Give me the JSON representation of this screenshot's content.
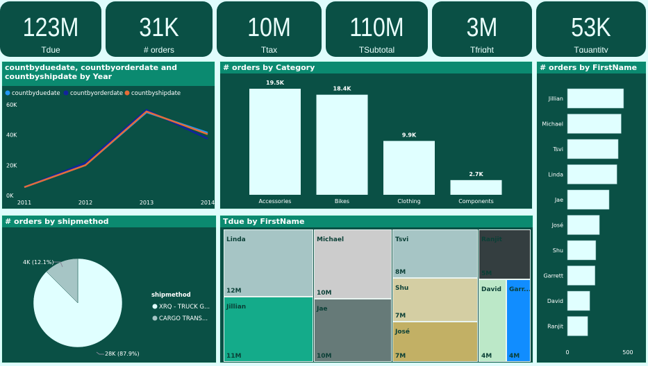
{
  "kpis": [
    {
      "value": "123M",
      "label": "Tdue"
    },
    {
      "value": "31K",
      "label": "# orders"
    },
    {
      "value": "10M",
      "label": "Ttax"
    },
    {
      "value": "110M",
      "label": "TSubtotal"
    },
    {
      "value": "3M",
      "label": "Tfright"
    },
    {
      "value": "53K",
      "label": "Tquantity"
    }
  ],
  "line_panel": {
    "title": "countbyduedate, countbyorderdate and countbyshipdate by Year"
  },
  "category_panel": {
    "title": "# orders by Category"
  },
  "firstname_panel": {
    "title": "# orders by FirstName"
  },
  "ship_panel": {
    "title": "# orders by shipmethod",
    "legend_title": "shipmethod"
  },
  "treemap_panel": {
    "title": "Tdue by FirstName"
  },
  "chart_data": [
    {
      "type": "line",
      "title": "countbyduedate, countbyorderdate and countbyshipdate by Year",
      "x": [
        "2011",
        "2012",
        "2013",
        "2014"
      ],
      "yticks": [
        "0K",
        "20K",
        "40K",
        "60K"
      ],
      "ylim": [
        0,
        60000
      ],
      "series": [
        {
          "name": "countbyduedate",
          "color": "#2196f3",
          "values": [
            5500,
            20000,
            55000,
            41500
          ]
        },
        {
          "name": "countbyorderdate",
          "color": "#12239e",
          "values": [
            5500,
            21500,
            56500,
            37500
          ]
        },
        {
          "name": "countbyshipdate",
          "color": "#e66c37",
          "values": [
            5500,
            20000,
            55500,
            40500
          ]
        }
      ]
    },
    {
      "type": "bar",
      "title": "# orders by Category",
      "categories": [
        "Accessories",
        "Bikes",
        "Clothing",
        "Components"
      ],
      "values": [
        19500,
        18400,
        9900,
        2700
      ],
      "labels": [
        "19.5K",
        "18.4K",
        "9.9K",
        "2.7K"
      ],
      "ylim": [
        0,
        20000
      ]
    },
    {
      "type": "bar",
      "orientation": "horizontal",
      "title": "# orders by FirstName",
      "categories": [
        "Jillian",
        "Michael",
        "Tsvi",
        "Linda",
        "Jae",
        "José",
        "Shu",
        "Garrett",
        "David",
        "Ranjit"
      ],
      "values": [
        465,
        445,
        420,
        410,
        345,
        265,
        235,
        228,
        185,
        168
      ],
      "xticks": [
        "0",
        "500"
      ],
      "xlim": [
        0,
        500
      ]
    },
    {
      "type": "pie",
      "title": "# orders by shipmethod",
      "slices": [
        {
          "name": "XRQ - TRUCK G...",
          "value": 28000,
          "label": "28K (87.9%)",
          "color": "#e0ffff"
        },
        {
          "name": "CARGO TRANS...",
          "value": 4000,
          "label": "4K (12.1%)",
          "color": "#a6c5c5"
        }
      ]
    },
    {
      "type": "treemap",
      "title": "Tdue by FirstName",
      "items": [
        {
          "name": "Linda",
          "label": "12M",
          "color": "#a6c5c5"
        },
        {
          "name": "Jillian",
          "label": "11M",
          "color": "#14ab8a"
        },
        {
          "name": "Michael",
          "label": "10M",
          "color": "#cccccc"
        },
        {
          "name": "Jae",
          "label": "10M",
          "color": "#667a78"
        },
        {
          "name": "Tsvi",
          "label": "8M",
          "color": "#a6c5c5"
        },
        {
          "name": "Shu",
          "label": "7M",
          "color": "#d4cea3"
        },
        {
          "name": "José",
          "label": "7M",
          "color": "#c2b065"
        },
        {
          "name": "Ranjit",
          "label": "5M",
          "color": "#343e40"
        },
        {
          "name": "David",
          "label": "4M",
          "color": "#bce8c8"
        },
        {
          "name": "Garr...",
          "label": "4M",
          "color": "#118dff"
        }
      ]
    }
  ]
}
